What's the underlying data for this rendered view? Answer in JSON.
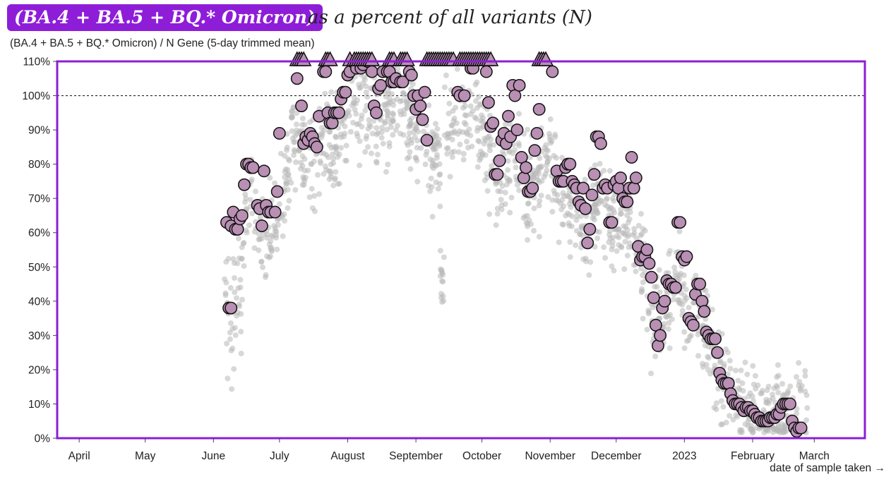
{
  "header": {
    "badge_text": "(BA.4 + BA.5 + BQ.* Omicron)",
    "title_rest": "as a percent of all variants (N)",
    "top_right_fragment": "",
    "badge_color": "#8e1dd8"
  },
  "chart_data": {
    "type": "scatter",
    "title": "(BA.4 + BA.5 + BQ.* Omicron) as a percent of all variants (N)",
    "ylabel": "(BA.4 + BA.5 + BQ.* Omicron) / N Gene (5-day trimmed mean)",
    "xlabel": "date of sample taken →",
    "ylim": [
      0,
      110
    ],
    "y_ticks": [
      0,
      10,
      20,
      30,
      40,
      50,
      60,
      70,
      80,
      90,
      100,
      110
    ],
    "y_tick_labels": [
      "0%",
      "10%",
      "20%",
      "30%",
      "40%",
      "50%",
      "60%",
      "70%",
      "80%",
      "90%",
      "100%",
      "110%"
    ],
    "reference_line": 100,
    "x_domain_days": [
      -10,
      357
    ],
    "x_tick_days": [
      0,
      30,
      61,
      91,
      122,
      153,
      183,
      214,
      244,
      275,
      306,
      334
    ],
    "x_tick_labels": [
      "April",
      "May",
      "June",
      "July",
      "August",
      "September",
      "October",
      "November",
      "December",
      "2023",
      "February",
      "March"
    ],
    "x_unit": "days since 2022-04-01",
    "colors": {
      "frame": "#8e1dd8",
      "highlight_fill": "#b98fb4",
      "background_points": "#b8b8b8"
    },
    "highlighted_series": [
      {
        "x": 67,
        "y": 63
      },
      {
        "x": 69,
        "y": 62
      },
      {
        "x": 70,
        "y": 66
      },
      {
        "x": 71,
        "y": 61
      },
      {
        "x": 72,
        "y": 61
      },
      {
        "x": 73,
        "y": 64
      },
      {
        "x": 74,
        "y": 65
      },
      {
        "x": 75,
        "y": 74
      },
      {
        "x": 76,
        "y": 80
      },
      {
        "x": 77,
        "y": 80
      },
      {
        "x": 78,
        "y": 79
      },
      {
        "x": 79,
        "y": 79
      },
      {
        "x": 81,
        "y": 68
      },
      {
        "x": 82,
        "y": 67
      },
      {
        "x": 83,
        "y": 62
      },
      {
        "x": 84,
        "y": 78
      },
      {
        "x": 85,
        "y": 68
      },
      {
        "x": 86,
        "y": 66
      },
      {
        "x": 87,
        "y": 66
      },
      {
        "x": 89,
        "y": 66
      },
      {
        "x": 90,
        "y": 72
      },
      {
        "x": 68,
        "y": 38
      },
      {
        "x": 69,
        "y": 38
      },
      {
        "x": 91,
        "y": 89
      },
      {
        "x": 99,
        "y": 105
      },
      {
        "x": 101,
        "y": 97
      },
      {
        "x": 102,
        "y": 86
      },
      {
        "x": 103,
        "y": 88
      },
      {
        "x": 104,
        "y": 87
      },
      {
        "x": 105,
        "y": 89
      },
      {
        "x": 106,
        "y": 88
      },
      {
        "x": 107,
        "y": 86
      },
      {
        "x": 108,
        "y": 85
      },
      {
        "x": 109,
        "y": 94
      },
      {
        "x": 111,
        "y": 107
      },
      {
        "x": 112,
        "y": 107
      },
      {
        "x": 113,
        "y": 95
      },
      {
        "x": 114,
        "y": 92
      },
      {
        "x": 115,
        "y": 92
      },
      {
        "x": 116,
        "y": 95
      },
      {
        "x": 117,
        "y": 95
      },
      {
        "x": 118,
        "y": 95
      },
      {
        "x": 119,
        "y": 99
      },
      {
        "x": 120,
        "y": 101
      },
      {
        "x": 121,
        "y": 101
      },
      {
        "x": 122,
        "y": 106
      },
      {
        "x": 123,
        "y": 107
      },
      {
        "x": 124,
        "y": 110
      },
      {
        "x": 126,
        "y": 108
      },
      {
        "x": 127,
        "y": 110
      },
      {
        "x": 128,
        "y": 108
      },
      {
        "x": 129,
        "y": 109
      },
      {
        "x": 131,
        "y": 110
      },
      {
        "x": 133,
        "y": 107
      },
      {
        "x": 134,
        "y": 97
      },
      {
        "x": 135,
        "y": 95
      },
      {
        "x": 136,
        "y": 102
      },
      {
        "x": 137,
        "y": 103
      },
      {
        "x": 138,
        "y": 107
      },
      {
        "x": 140,
        "y": 107
      },
      {
        "x": 141,
        "y": 107
      },
      {
        "x": 142,
        "y": 104
      },
      {
        "x": 143,
        "y": 104
      },
      {
        "x": 144,
        "y": 105
      },
      {
        "x": 146,
        "y": 104
      },
      {
        "x": 147,
        "y": 104
      },
      {
        "x": 150,
        "y": 107
      },
      {
        "x": 151,
        "y": 106
      },
      {
        "x": 152,
        "y": 100
      },
      {
        "x": 153,
        "y": 96
      },
      {
        "x": 154,
        "y": 100
      },
      {
        "x": 155,
        "y": 97
      },
      {
        "x": 156,
        "y": 93
      },
      {
        "x": 157,
        "y": 101
      },
      {
        "x": 158,
        "y": 87
      },
      {
        "x": 172,
        "y": 101
      },
      {
        "x": 173,
        "y": 100
      },
      {
        "x": 175,
        "y": 100
      },
      {
        "x": 178,
        "y": 108
      },
      {
        "x": 179,
        "y": 108
      },
      {
        "x": 185,
        "y": 107
      },
      {
        "x": 186,
        "y": 98
      },
      {
        "x": 187,
        "y": 91
      },
      {
        "x": 188,
        "y": 92
      },
      {
        "x": 189,
        "y": 77
      },
      {
        "x": 190,
        "y": 77
      },
      {
        "x": 191,
        "y": 81
      },
      {
        "x": 192,
        "y": 87
      },
      {
        "x": 193,
        "y": 89
      },
      {
        "x": 194,
        "y": 86
      },
      {
        "x": 195,
        "y": 94
      },
      {
        "x": 196,
        "y": 88
      },
      {
        "x": 197,
        "y": 103
      },
      {
        "x": 198,
        "y": 100
      },
      {
        "x": 199,
        "y": 90
      },
      {
        "x": 200,
        "y": 103
      },
      {
        "x": 201,
        "y": 82
      },
      {
        "x": 202,
        "y": 76
      },
      {
        "x": 203,
        "y": 79
      },
      {
        "x": 204,
        "y": 72
      },
      {
        "x": 205,
        "y": 72
      },
      {
        "x": 206,
        "y": 73
      },
      {
        "x": 207,
        "y": 84
      },
      {
        "x": 208,
        "y": 89
      },
      {
        "x": 209,
        "y": 96
      },
      {
        "x": 215,
        "y": 107
      },
      {
        "x": 217,
        "y": 78
      },
      {
        "x": 218,
        "y": 75
      },
      {
        "x": 219,
        "y": 75
      },
      {
        "x": 220,
        "y": 75
      },
      {
        "x": 221,
        "y": 79
      },
      {
        "x": 222,
        "y": 80
      },
      {
        "x": 223,
        "y": 80
      },
      {
        "x": 224,
        "y": 75
      },
      {
        "x": 225,
        "y": 74
      },
      {
        "x": 226,
        "y": 73
      },
      {
        "x": 227,
        "y": 69
      },
      {
        "x": 228,
        "y": 68
      },
      {
        "x": 229,
        "y": 73
      },
      {
        "x": 230,
        "y": 67
      },
      {
        "x": 231,
        "y": 57
      },
      {
        "x": 232,
        "y": 61
      },
      {
        "x": 233,
        "y": 71
      },
      {
        "x": 234,
        "y": 77
      },
      {
        "x": 235,
        "y": 88
      },
      {
        "x": 236,
        "y": 88
      },
      {
        "x": 237,
        "y": 86
      },
      {
        "x": 238,
        "y": 73
      },
      {
        "x": 239,
        "y": 74
      },
      {
        "x": 240,
        "y": 73
      },
      {
        "x": 241,
        "y": 63
      },
      {
        "x": 242,
        "y": 63
      },
      {
        "x": 243,
        "y": 74
      },
      {
        "x": 244,
        "y": 75
      },
      {
        "x": 245,
        "y": 73
      },
      {
        "x": 246,
        "y": 76
      },
      {
        "x": 247,
        "y": 70
      },
      {
        "x": 248,
        "y": 69
      },
      {
        "x": 249,
        "y": 69
      },
      {
        "x": 250,
        "y": 73
      },
      {
        "x": 251,
        "y": 82
      },
      {
        "x": 252,
        "y": 73
      },
      {
        "x": 253,
        "y": 76
      },
      {
        "x": 254,
        "y": 56
      },
      {
        "x": 255,
        "y": 52
      },
      {
        "x": 256,
        "y": 53
      },
      {
        "x": 257,
        "y": 53
      },
      {
        "x": 258,
        "y": 55
      },
      {
        "x": 259,
        "y": 51
      },
      {
        "x": 260,
        "y": 47
      },
      {
        "x": 261,
        "y": 41
      },
      {
        "x": 262,
        "y": 33
      },
      {
        "x": 263,
        "y": 27
      },
      {
        "x": 264,
        "y": 30
      },
      {
        "x": 265,
        "y": 38
      },
      {
        "x": 266,
        "y": 40
      },
      {
        "x": 267,
        "y": 46
      },
      {
        "x": 268,
        "y": 45
      },
      {
        "x": 269,
        "y": 45
      },
      {
        "x": 270,
        "y": 44
      },
      {
        "x": 271,
        "y": 44
      },
      {
        "x": 272,
        "y": 63
      },
      {
        "x": 273,
        "y": 63
      },
      {
        "x": 274,
        "y": 53
      },
      {
        "x": 275,
        "y": 52
      },
      {
        "x": 276,
        "y": 53
      },
      {
        "x": 277,
        "y": 35
      },
      {
        "x": 278,
        "y": 34
      },
      {
        "x": 279,
        "y": 33
      },
      {
        "x": 280,
        "y": 42
      },
      {
        "x": 281,
        "y": 45
      },
      {
        "x": 282,
        "y": 45
      },
      {
        "x": 283,
        "y": 40
      },
      {
        "x": 284,
        "y": 37
      },
      {
        "x": 285,
        "y": 31
      },
      {
        "x": 286,
        "y": 30
      },
      {
        "x": 287,
        "y": 29
      },
      {
        "x": 288,
        "y": 29
      },
      {
        "x": 289,
        "y": 29
      },
      {
        "x": 290,
        "y": 25
      },
      {
        "x": 291,
        "y": 19
      },
      {
        "x": 292,
        "y": 17
      },
      {
        "x": 293,
        "y": 16
      },
      {
        "x": 294,
        "y": 16
      },
      {
        "x": 295,
        "y": 16
      },
      {
        "x": 296,
        "y": 13
      },
      {
        "x": 297,
        "y": 11
      },
      {
        "x": 298,
        "y": 10
      },
      {
        "x": 299,
        "y": 10
      },
      {
        "x": 300,
        "y": 10
      },
      {
        "x": 301,
        "y": 9
      },
      {
        "x": 302,
        "y": 8
      },
      {
        "x": 303,
        "y": 9
      },
      {
        "x": 304,
        "y": 9
      },
      {
        "x": 305,
        "y": 8
      },
      {
        "x": 306,
        "y": 8
      },
      {
        "x": 307,
        "y": 7
      },
      {
        "x": 308,
        "y": 6
      },
      {
        "x": 309,
        "y": 6
      },
      {
        "x": 310,
        "y": 5
      },
      {
        "x": 311,
        "y": 5
      },
      {
        "x": 312,
        "y": 5
      },
      {
        "x": 313,
        "y": 5
      },
      {
        "x": 314,
        "y": 6
      },
      {
        "x": 315,
        "y": 6
      },
      {
        "x": 316,
        "y": 6
      },
      {
        "x": 317,
        "y": 7
      },
      {
        "x": 318,
        "y": 7
      },
      {
        "x": 319,
        "y": 9
      },
      {
        "x": 320,
        "y": 10
      },
      {
        "x": 321,
        "y": 10
      },
      {
        "x": 322,
        "y": 10
      },
      {
        "x": 323,
        "y": 10
      },
      {
        "x": 324,
        "y": 5
      },
      {
        "x": 325,
        "y": 3
      },
      {
        "x": 326,
        "y": 2
      },
      {
        "x": 327,
        "y": 3
      },
      {
        "x": 328,
        "y": 3
      }
    ],
    "clipped_above_110_days": [
      99,
      100,
      101,
      102,
      112,
      113,
      114,
      123,
      125,
      126,
      127,
      128,
      129,
      130,
      131,
      132,
      133,
      141,
      142,
      143,
      146,
      147,
      148,
      149,
      158,
      159,
      160,
      161,
      162,
      163,
      164,
      165,
      166,
      167,
      168,
      169,
      170,
      173,
      174,
      175,
      176,
      177,
      178,
      179,
      180,
      181,
      182,
      183,
      184,
      185,
      186,
      187,
      209,
      210,
      211,
      212
    ]
  },
  "background_series": {
    "description": "many faint gray individual-site points; generated procedurally around the highlighted trend",
    "count": 1500
  }
}
